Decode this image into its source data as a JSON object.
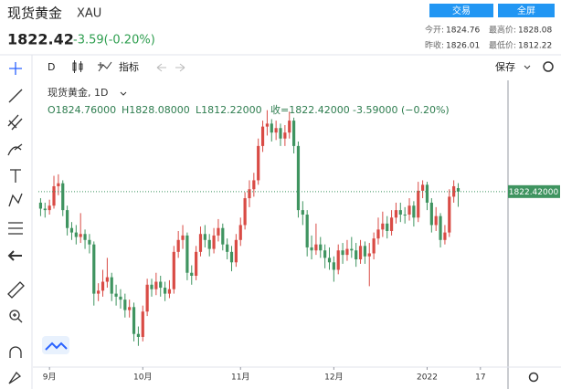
{
  "header": {
    "title": "现货黄金",
    "symbol": "XAU",
    "price": "1822.42",
    "change": "-3.59(-0.20%)",
    "buttons": [
      "交易",
      "全屏"
    ],
    "stats": [
      [
        "今开:",
        "1824.76"
      ],
      [
        "最高价:",
        "1828.08"
      ],
      [
        "昨收:",
        "1826.01"
      ],
      [
        "最低价:",
        "1812.22"
      ]
    ]
  },
  "toolbar": {
    "interval": "D",
    "indicators": "指标",
    "save": "保存"
  },
  "legend": {
    "name": "现货黄金, 1D",
    "ohlc": [
      "O1824.76000",
      "H1828.08000",
      "L1812.22000",
      "收=1822.42000",
      "-3.59000 (−0.20%)"
    ]
  },
  "chart_data": {
    "type": "candlestick",
    "up_color": "#d94b45",
    "down_color": "#3f9460",
    "xlim": [
      -0.5,
      105
    ],
    "xticks": [
      {
        "value": 2,
        "label": "9月"
      },
      {
        "value": 23,
        "label": "10月"
      },
      {
        "value": 45,
        "label": "11月"
      },
      {
        "value": 66,
        "label": "12月"
      },
      {
        "value": 87,
        "label": "2022"
      },
      {
        "value": 99,
        "label": "17"
      }
    ],
    "ylim": [
      1706,
      1897
    ],
    "last_price": {
      "value": 1822.42,
      "label": "1822.42000"
    },
    "open": [
      1815,
      1811,
      1810,
      1813,
      1826,
      1828,
      1810,
      1798,
      1795,
      1792,
      1794,
      1790,
      1787,
      1754,
      1756,
      1762,
      1765,
      1754,
      1752,
      1750,
      1743,
      1745,
      1727,
      1725,
      1742,
      1760,
      1757,
      1762,
      1758,
      1754,
      1757,
      1782,
      1790,
      1793,
      1768,
      1766,
      1782,
      1794,
      1790,
      1784,
      1793,
      1798,
      1787,
      1782,
      1775,
      1790,
      1800,
      1818,
      1824,
      1830,
      1853,
      1866,
      1868,
      1862,
      1865,
      1858,
      1862,
      1870,
      1853,
      1810,
      1807,
      1785,
      1783,
      1787,
      1783,
      1778,
      1775,
      1770,
      1783,
      1780,
      1784,
      1783,
      1777,
      1786,
      1779,
      1781,
      1791,
      1797,
      1801,
      1796,
      1805,
      1810,
      1807,
      1807,
      1813,
      1805,
      1823,
      1827,
      1815,
      1800,
      1806,
      1790,
      1795,
      1819,
      1824.76
    ],
    "high": [
      1818,
      1815,
      1817,
      1833,
      1834,
      1830,
      1813,
      1802,
      1800,
      1808,
      1797,
      1794,
      1789,
      1761,
      1770,
      1778,
      1768,
      1760,
      1757,
      1754,
      1750,
      1748,
      1732,
      1746,
      1764,
      1764,
      1768,
      1766,
      1762,
      1763,
      1786,
      1796,
      1800,
      1795,
      1773,
      1786,
      1799,
      1800,
      1794,
      1798,
      1804,
      1801,
      1791,
      1786,
      1794,
      1805,
      1822,
      1830,
      1835,
      1858,
      1870,
      1877,
      1871,
      1870,
      1868,
      1867,
      1876,
      1872,
      1856,
      1816,
      1810,
      1793,
      1801,
      1792,
      1787,
      1785,
      1779,
      1787,
      1788,
      1790,
      1792,
      1788,
      1790,
      1789,
      1788,
      1795,
      1805,
      1809,
      1806,
      1810,
      1815,
      1815,
      1812,
      1818,
      1816,
      1829,
      1830,
      1829,
      1818,
      1812,
      1808,
      1800,
      1824,
      1830,
      1828.08
    ],
    "low": [
      1806,
      1805,
      1807,
      1811,
      1820,
      1806,
      1793,
      1790,
      1787,
      1788,
      1784,
      1781,
      1746,
      1749,
      1752,
      1758,
      1749,
      1746,
      1744,
      1738,
      1738,
      1722,
      1719,
      1722,
      1739,
      1752,
      1753,
      1752,
      1749,
      1751,
      1754,
      1778,
      1784,
      1763,
      1760,
      1763,
      1779,
      1785,
      1779,
      1781,
      1789,
      1783,
      1777,
      1769,
      1772,
      1786,
      1797,
      1812,
      1819,
      1827,
      1849,
      1860,
      1856,
      1857,
      1853,
      1853,
      1858,
      1848,
      1805,
      1800,
      1779,
      1777,
      1780,
      1778,
      1771,
      1770,
      1762,
      1767,
      1774,
      1776,
      1778,
      1772,
      1774,
      1774,
      1759,
      1777,
      1787,
      1792,
      1791,
      1793,
      1801,
      1802,
      1801,
      1803,
      1799,
      1802,
      1818,
      1810,
      1795,
      1796,
      1785,
      1787,
      1792,
      1815,
      1812.22
    ],
    "close": [
      1811,
      1810,
      1813,
      1826,
      1828,
      1810,
      1798,
      1795,
      1792,
      1794,
      1790,
      1787,
      1754,
      1756,
      1762,
      1765,
      1754,
      1752,
      1750,
      1743,
      1745,
      1727,
      1725,
      1742,
      1760,
      1757,
      1762,
      1758,
      1754,
      1757,
      1782,
      1790,
      1793,
      1768,
      1766,
      1782,
      1794,
      1790,
      1784,
      1793,
      1798,
      1787,
      1782,
      1775,
      1790,
      1800,
      1818,
      1824,
      1830,
      1853,
      1866,
      1868,
      1862,
      1865,
      1858,
      1862,
      1870,
      1853,
      1810,
      1807,
      1785,
      1783,
      1787,
      1783,
      1778,
      1775,
      1770,
      1783,
      1780,
      1784,
      1783,
      1777,
      1786,
      1779,
      1781,
      1791,
      1797,
      1801,
      1796,
      1805,
      1810,
      1807,
      1807,
      1813,
      1805,
      1823,
      1827,
      1815,
      1800,
      1806,
      1790,
      1795,
      1819,
      1826,
      1822.42
    ]
  }
}
